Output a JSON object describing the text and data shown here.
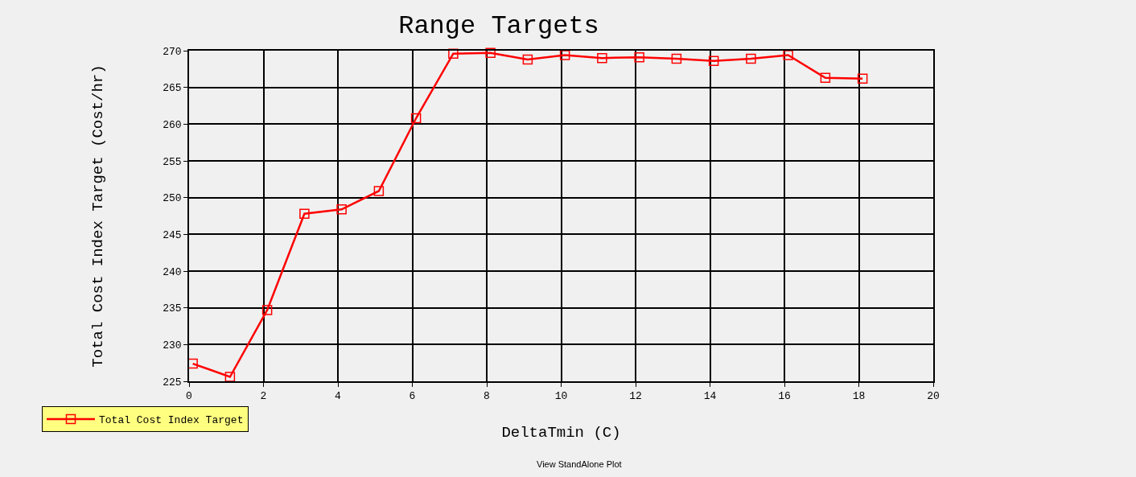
{
  "chart_data": {
    "type": "line",
    "title": "Range Targets",
    "xlabel": "DeltaTmin (C)",
    "ylabel": "Total Cost Index Target (Cost/hr)",
    "x": [
      0.1,
      1.1,
      2.1,
      3.1,
      4.1,
      5.1,
      6.1,
      7.1,
      8.1,
      9.1,
      10.1,
      11.1,
      12.1,
      13.1,
      14.1,
      15.1,
      16.1,
      17.1,
      18.1
    ],
    "series": [
      {
        "name": "Total Cost Index Target",
        "color": "#ff0000",
        "values": [
          227.4,
          225.6,
          234.7,
          247.8,
          248.4,
          250.9,
          260.8,
          269.6,
          269.7,
          268.8,
          269.4,
          269.0,
          269.1,
          268.9,
          268.6,
          268.9,
          269.4,
          266.3,
          266.2
        ]
      }
    ],
    "xlim": [
      0,
      20
    ],
    "ylim": [
      225,
      270
    ],
    "xticks": [
      0,
      2,
      4,
      6,
      8,
      10,
      12,
      14,
      16,
      18,
      20
    ],
    "yticks": [
      225,
      230,
      235,
      240,
      245,
      250,
      255,
      260,
      265,
      270
    ],
    "grid": true,
    "legend": "bottom left",
    "marker": "square",
    "line_style": "solid",
    "annotations": [
      "View StandAlone Plot"
    ]
  }
}
